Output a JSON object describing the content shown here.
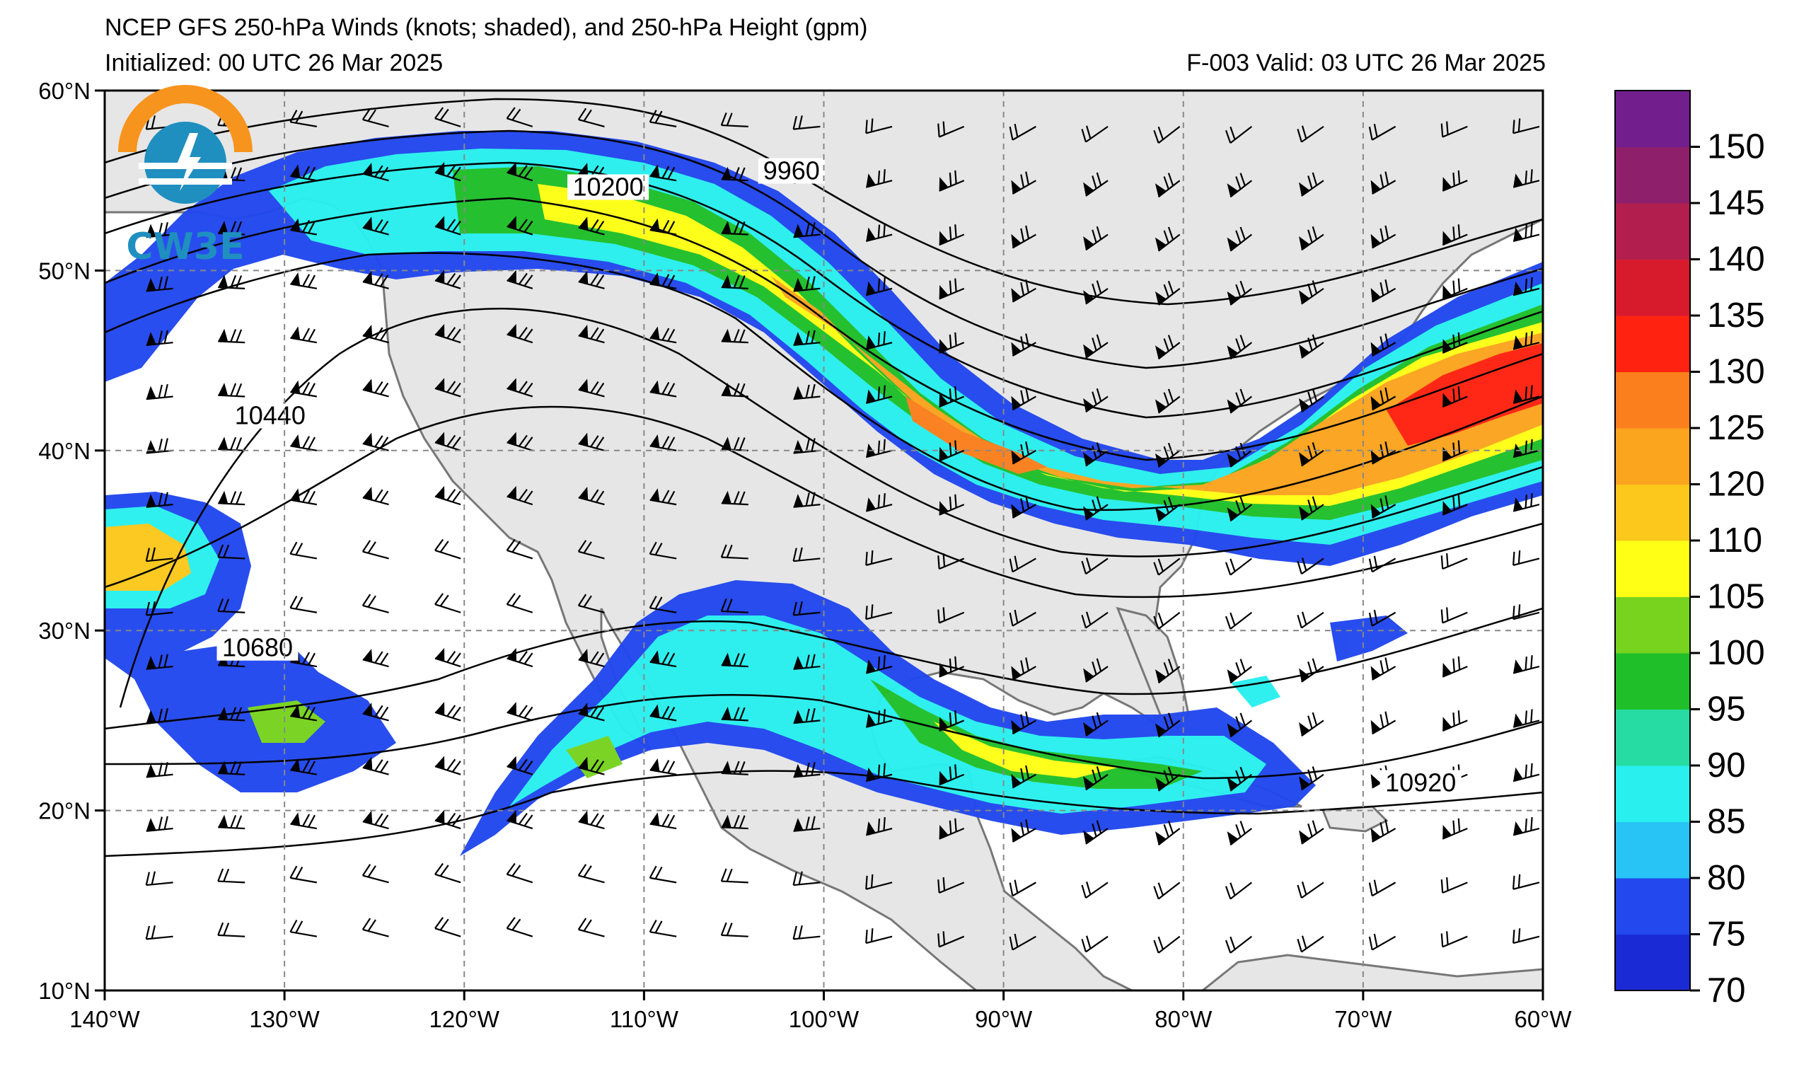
{
  "title": {
    "line1": "NCEP GFS 250-hPa Winds (knots; shaded), and 250-hPa Height (gpm)",
    "line2": "Initialized: 00 UTC 26 Mar 2025",
    "valid": "F-003  Valid: 03 UTC 26 Mar 2025"
  },
  "logo": {
    "text": "CW3E",
    "icon": "cw3e-logo-icon"
  },
  "map": {
    "lon_range": [
      -140,
      -60
    ],
    "lat_range": [
      10,
      60
    ],
    "lon_ticks": [
      {
        "value": -140,
        "label": "140°W"
      },
      {
        "value": -130,
        "label": "130°W"
      },
      {
        "value": -120,
        "label": "120°W"
      },
      {
        "value": -110,
        "label": "110°W"
      },
      {
        "value": -100,
        "label": "100°W"
      },
      {
        "value": -90,
        "label": "90°W"
      },
      {
        "value": -80,
        "label": "80°W"
      },
      {
        "value": -70,
        "label": "70°W"
      },
      {
        "value": -60,
        "label": "60°W"
      }
    ],
    "lat_ticks": [
      {
        "value": 60,
        "label": "60°N"
      },
      {
        "value": 50,
        "label": "50°N"
      },
      {
        "value": 40,
        "label": "40°N"
      },
      {
        "value": 30,
        "label": "30°N"
      },
      {
        "value": 20,
        "label": "20°N"
      },
      {
        "value": 10,
        "label": "10°N"
      }
    ],
    "grid": "dashed",
    "land_color": "#e6e6e6",
    "ocean_color": "#ffffff",
    "contour_labels": [
      {
        "text": "9960",
        "lon": -101.8,
        "lat": 55.3
      },
      {
        "text": "10200",
        "lon": -112,
        "lat": 54.4
      },
      {
        "text": "10440",
        "lon": -130.8,
        "lat": 41.7
      },
      {
        "text": "10680",
        "lon": -131.5,
        "lat": 28.8
      },
      {
        "text": "10920",
        "lon": -66.8,
        "lat": 21.3
      }
    ]
  },
  "colorbar": {
    "levels": [
      70,
      75,
      80,
      85,
      90,
      95,
      100,
      105,
      110,
      120,
      125,
      130,
      135,
      140,
      145,
      150,
      155
    ],
    "labels": [
      "70",
      "75",
      "80",
      "85",
      "90",
      "95",
      "100",
      "105",
      "110",
      "120",
      "125",
      "130",
      "135",
      "140",
      "145",
      "150"
    ],
    "colors": [
      "#1a2bd6",
      "#2248ee",
      "#27c4f5",
      "#29f0ef",
      "#27dca2",
      "#1fbf2a",
      "#77d31e",
      "#ffff15",
      "#fbc81b",
      "#fba41e",
      "#fb7f1d",
      "#ff2210",
      "#d71b2d",
      "#b21f4e",
      "#8e1f6a",
      "#721f8d"
    ]
  }
}
